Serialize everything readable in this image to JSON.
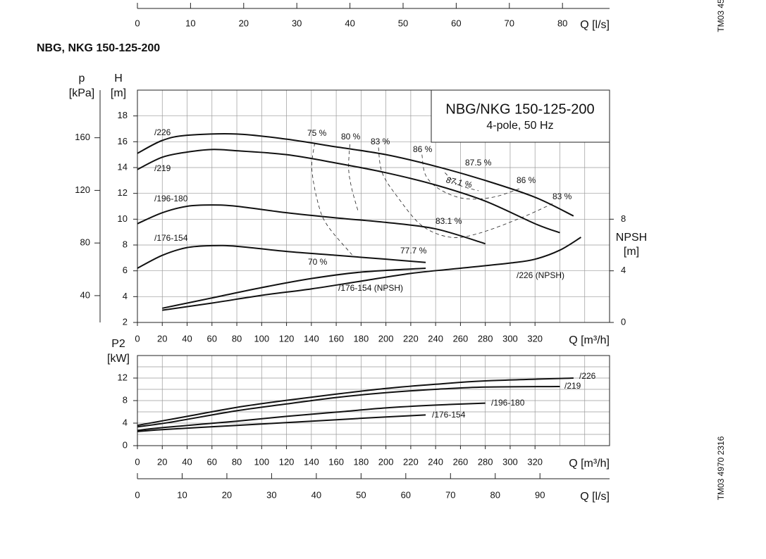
{
  "title": "NBG, NKG 150-125-200",
  "codes": [
    "TM03 45",
    "TM03 4970 2316"
  ],
  "chart_data": [
    {
      "type": "axis",
      "x_label": "Q [l/s]",
      "xlim": [
        0,
        88.86
      ],
      "xticks": [
        0,
        10,
        20,
        30,
        40,
        50,
        60,
        70,
        80
      ]
    },
    {
      "type": "line",
      "box_title": "NBG/NKG 150-125-200",
      "box_subtitle": "4-pole, 50 Hz",
      "x_label": "Q [m³/h]",
      "xlim": [
        0,
        380
      ],
      "xticks": [
        0,
        20,
        40,
        60,
        80,
        100,
        120,
        140,
        160,
        180,
        200,
        220,
        240,
        260,
        280,
        300,
        320
      ],
      "xgrid_extra": [
        340,
        360
      ],
      "y_label": "H",
      "y_unit": "[m]",
      "ylim": [
        2,
        20
      ],
      "yticks": [
        2,
        4,
        6,
        8,
        10,
        12,
        14,
        16,
        18
      ],
      "p_label": "p",
      "p_unit": "[kPa]",
      "plim": [
        19.62,
        196.2
      ],
      "pticks": [
        40,
        80,
        120,
        160
      ],
      "y2_label": "NPSH",
      "y2_unit": "[m]",
      "y2lim": [
        0,
        18
      ],
      "y2ticks": [
        0,
        4,
        8
      ],
      "grid": true,
      "series": [
        {
          "name": "/226",
          "color": "#111111",
          "x": [
            0,
            20,
            40,
            80,
            120,
            160,
            200,
            240,
            280,
            320,
            351
          ],
          "values": [
            15.1,
            16.1,
            16.5,
            16.6,
            16.2,
            15.6,
            15.0,
            14.1,
            13.0,
            11.7,
            10.25
          ]
        },
        {
          "name": "/219",
          "color": "#111111",
          "x": [
            0,
            20,
            40,
            60,
            80,
            120,
            160,
            200,
            240,
            280,
            320,
            340
          ],
          "values": [
            13.85,
            14.8,
            15.2,
            15.4,
            15.3,
            15.0,
            14.35,
            13.6,
            12.65,
            11.4,
            9.65,
            8.95
          ]
        },
        {
          "name": "/196-180",
          "color": "#111111",
          "x": [
            0,
            20,
            40,
            60,
            80,
            120,
            160,
            200,
            240,
            280
          ],
          "values": [
            9.65,
            10.5,
            11.0,
            11.1,
            11.0,
            10.5,
            10.1,
            9.75,
            9.25,
            8.1
          ]
        },
        {
          "name": "/176-154",
          "color": "#111111",
          "x": [
            0,
            20,
            40,
            60,
            80,
            120,
            160,
            200,
            232
          ],
          "values": [
            6.2,
            7.2,
            7.8,
            7.95,
            7.9,
            7.5,
            7.2,
            6.9,
            6.65
          ]
        },
        {
          "name": "/176-154 (NPSH)",
          "color": "#111111",
          "axis": "y2",
          "x": [
            20,
            60,
            100,
            140,
            180,
            232
          ],
          "values": [
            1.1,
            1.9,
            2.7,
            3.4,
            3.9,
            4.2
          ]
        },
        {
          "name": "/226 (NPSH)",
          "color": "#111111",
          "axis": "y2",
          "x": [
            20,
            60,
            100,
            140,
            180,
            220,
            260,
            300,
            320,
            340,
            357
          ],
          "values": [
            0.95,
            1.5,
            2.1,
            2.6,
            3.2,
            3.8,
            4.2,
            4.6,
            4.9,
            5.6,
            6.6
          ]
        }
      ],
      "efficiency_curves": [
        {
          "x": [
            142.7,
            140.4,
            145.5,
            153,
            172.7
          ],
          "values": [
            15.9,
            13.9,
            11.2,
            9.5,
            7.25
          ]
        },
        {
          "x": [
            171,
            170,
            172.7,
            178
          ],
          "values": [
            15.8,
            13.9,
            12.3,
            10.5
          ]
        },
        {
          "x": [
            194,
            197,
            209.5,
            229,
            252,
            274.6,
            308.6,
            334
          ],
          "values": [
            15.55,
            13.6,
            11.7,
            9.5,
            8.6,
            8.9,
            10.1,
            11.2
          ]
        },
        {
          "x": [
            229,
            232,
            243.5,
            263,
            286,
            308.6
          ],
          "values": [
            15.0,
            13.4,
            12.3,
            11.6,
            11.7,
            12.4
          ]
        },
        {
          "x": [
            247.5,
            257.6,
            274.6
          ],
          "values": [
            13.6,
            12.7,
            12.2
          ]
        }
      ],
      "annotations": [
        "75 %",
        "80 %",
        "83 %",
        "86 %",
        "87.5 %",
        "87.1 %",
        "86 %",
        "83 %",
        "83.1 %",
        "77.7 %",
        "70 %"
      ]
    },
    {
      "type": "line",
      "x_label": "Q [m³/h]",
      "xlim": [
        0,
        380
      ],
      "xticks": [
        0,
        20,
        40,
        60,
        80,
        100,
        120,
        140,
        160,
        180,
        200,
        220,
        240,
        260,
        280,
        300,
        320
      ],
      "xgrid_extra": [
        340,
        360
      ],
      "y_label": "P2",
      "y_unit": "[kW]",
      "ylim": [
        0,
        16
      ],
      "yticks": [
        0,
        4,
        8,
        12
      ],
      "ygrid_extra": [
        2,
        6,
        10,
        14
      ],
      "grid": true,
      "series": [
        {
          "name": "/226",
          "color": "#111111",
          "x": [
            0,
            25,
            40,
            80,
            120,
            160,
            200,
            240,
            280,
            351
          ],
          "values": [
            3.6,
            4.6,
            5.2,
            6.8,
            8.05,
            9.15,
            10.15,
            10.9,
            11.5,
            12.0
          ]
        },
        {
          "name": "/219",
          "color": "#111111",
          "x": [
            0,
            25,
            80,
            120,
            160,
            200,
            240,
            280,
            340
          ],
          "values": [
            3.35,
            4.1,
            6.2,
            7.4,
            8.55,
            9.4,
            10.0,
            10.4,
            10.5
          ]
        },
        {
          "name": "/196-180",
          "color": "#111111",
          "x": [
            0,
            20,
            80,
            120,
            160,
            200,
            240,
            280
          ],
          "values": [
            2.7,
            3.2,
            4.35,
            5.2,
            5.95,
            6.7,
            7.2,
            7.55
          ]
        },
        {
          "name": "/176-154",
          "color": "#111111",
          "x": [
            0,
            20,
            80,
            120,
            160,
            200,
            232
          ],
          "values": [
            2.5,
            2.85,
            3.6,
            4.1,
            4.6,
            5.1,
            5.45
          ]
        }
      ]
    },
    {
      "type": "axis",
      "x_label": "Q [l/s]",
      "xlim": [
        0,
        105.56
      ],
      "xticks": [
        0,
        10,
        20,
        30,
        40,
        50,
        60,
        70,
        80,
        90
      ]
    }
  ]
}
